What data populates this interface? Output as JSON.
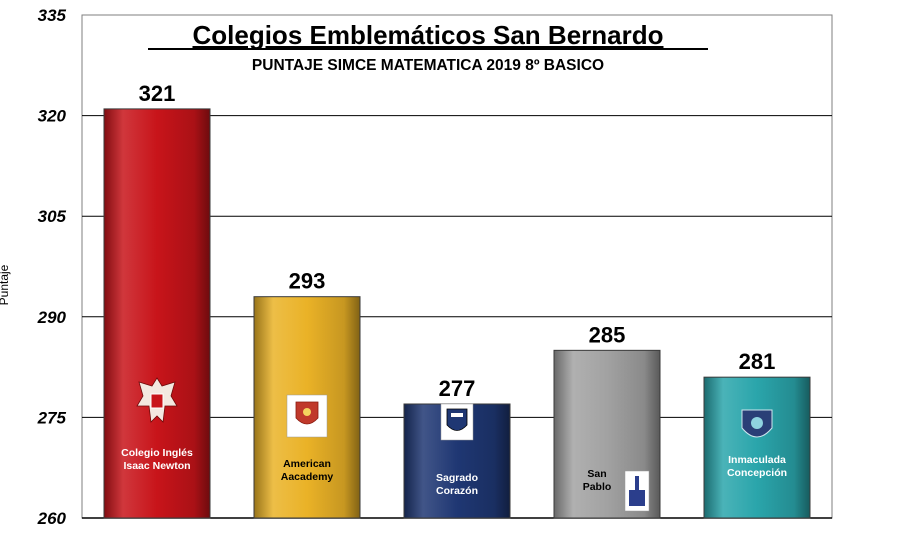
{
  "chart_data": {
    "type": "bar",
    "title": "Colegios Emblemáticos San Bernardo",
    "subtitle": "PUNTAJE SIMCE MATEMATICA 2019  8º BASICO",
    "ylabel": "Puntaje",
    "ylim": [
      260,
      335
    ],
    "yticks": [
      260,
      275,
      290,
      305,
      320,
      335
    ],
    "grid": true,
    "categories": [
      [
        "Colegio Inglés",
        "Isaac Newton"
      ],
      [
        "American",
        "Aacademy"
      ],
      [
        "Sagrado",
        "Corazón"
      ],
      [
        "San",
        "Pablo"
      ],
      [
        "Inmaculada",
        "Concepción"
      ]
    ],
    "values": [
      321,
      293,
      277,
      285,
      281
    ],
    "bar_colors": [
      "#c8141a",
      "#eab227",
      "#1f3773",
      "#a2a2a2",
      "#2aa5ab"
    ],
    "bar_text_colors": [
      "#ffffff",
      "#000000",
      "#ffffff",
      "#000000",
      "#ffffff"
    ],
    "logo_icons": [
      "eagle-crest-icon",
      "academy-shield-icon",
      "sacred-heart-shield-icon",
      "san-pablo-logo-icon",
      "inmaculada-shield-icon"
    ]
  }
}
